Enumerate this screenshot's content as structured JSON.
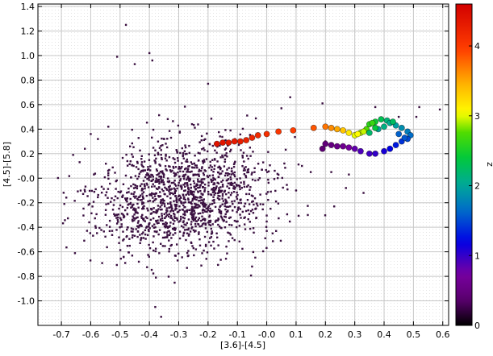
{
  "chart_data": {
    "type": "scatter",
    "xlabel": "[3.6]-[4.5]",
    "ylabel": "[4.5]-[5.8]",
    "xlim": [
      -0.78,
      0.62
    ],
    "ylim": [
      -1.2,
      1.42
    ],
    "xticks": [
      -0.7,
      -0.6,
      -0.5,
      -0.4,
      -0.3,
      -0.2,
      -0.1,
      0.0,
      0.1,
      0.2,
      0.3,
      0.4,
      0.5,
      0.6
    ],
    "xtick_labels": [
      "-0.7",
      "-0.6",
      "-0.5",
      "-0.4",
      "-0.3",
      "-0.2",
      "-0.1",
      "-0.0",
      "0.1",
      "0.2",
      "0.3",
      "0.4",
      "0.5",
      "0.6"
    ],
    "yticks": [
      -1.0,
      -0.8,
      -0.6,
      -0.4,
      -0.2,
      0.0,
      0.2,
      0.4,
      0.6,
      0.8,
      1.0,
      1.2,
      1.4
    ],
    "ytick_labels": [
      "-1.0",
      "-0.8",
      "-0.6",
      "-0.4",
      "-0.2",
      "-0.0",
      "0.2",
      "0.4",
      "0.6",
      "0.8",
      "1.0",
      "1.2",
      "1.4"
    ],
    "grid": true,
    "background_cloud": {
      "marker": "small square",
      "color": "#3a1040",
      "approx_count": 1500,
      "center": [
        -0.28,
        -0.15
      ],
      "spread": [
        0.16,
        0.24
      ],
      "outliers": [
        [
          -0.48,
          1.25
        ],
        [
          -0.4,
          1.02
        ],
        [
          -0.39,
          0.96
        ],
        [
          -0.51,
          0.99
        ],
        [
          -0.45,
          0.93
        ],
        [
          -0.69,
          -0.21
        ],
        [
          -0.66,
          0.19
        ],
        [
          -0.62,
          0.24
        ],
        [
          -0.6,
          0.36
        ],
        [
          -0.54,
          0.42
        ],
        [
          -0.36,
          -1.13
        ],
        [
          -0.38,
          -1.05
        ],
        [
          -0.2,
          0.77
        ],
        [
          0.08,
          0.66
        ],
        [
          0.05,
          0.57
        ],
        [
          0.52,
          0.58
        ],
        [
          0.51,
          0.5
        ],
        [
          0.59,
          0.56
        ],
        [
          0.37,
          0.58
        ],
        [
          0.19,
          0.61
        ],
        [
          0.45,
          0.5
        ],
        [
          0.23,
          -0.23
        ],
        [
          0.14,
          -0.3
        ],
        [
          0.28,
          0.03
        ],
        [
          0.33,
          -0.12
        ],
        [
          0.12,
          0.1
        ],
        [
          0.2,
          0.3
        ],
        [
          0.1,
          -0.1
        ],
        [
          0.06,
          0.12
        ],
        [
          0.0,
          -0.43
        ],
        [
          -0.05,
          -0.72
        ],
        [
          0.02,
          -0.45
        ],
        [
          0.15,
          0.05
        ],
        [
          0.22,
          0.05
        ],
        [
          0.27,
          -0.08
        ]
      ]
    },
    "track": {
      "name": "z",
      "marker": "circle",
      "colormap": "rainbow",
      "points": [
        {
          "x": -0.17,
          "y": 0.28,
          "z": 4.4
        },
        {
          "x": -0.15,
          "y": 0.29,
          "z": 4.38
        },
        {
          "x": -0.13,
          "y": 0.29,
          "z": 4.35
        },
        {
          "x": -0.11,
          "y": 0.3,
          "z": 4.32
        },
        {
          "x": -0.09,
          "y": 0.3,
          "z": 4.28
        },
        {
          "x": -0.07,
          "y": 0.31,
          "z": 4.24
        },
        {
          "x": -0.05,
          "y": 0.33,
          "z": 4.2
        },
        {
          "x": -0.03,
          "y": 0.35,
          "z": 4.15
        },
        {
          "x": 0.0,
          "y": 0.36,
          "z": 4.1
        },
        {
          "x": 0.04,
          "y": 0.38,
          "z": 4.02
        },
        {
          "x": 0.09,
          "y": 0.39,
          "z": 3.95
        },
        {
          "x": 0.16,
          "y": 0.41,
          "z": 3.85
        },
        {
          "x": 0.2,
          "y": 0.42,
          "z": 3.72
        },
        {
          "x": 0.22,
          "y": 0.41,
          "z": 3.62
        },
        {
          "x": 0.24,
          "y": 0.4,
          "z": 3.5
        },
        {
          "x": 0.26,
          "y": 0.39,
          "z": 3.35
        },
        {
          "x": 0.28,
          "y": 0.37,
          "z": 3.15
        },
        {
          "x": 0.3,
          "y": 0.35,
          "z": 3.0
        },
        {
          "x": 0.32,
          "y": 0.37,
          "z": 2.9
        },
        {
          "x": 0.34,
          "y": 0.4,
          "z": 2.75
        },
        {
          "x": 0.35,
          "y": 0.44,
          "z": 2.6
        },
        {
          "x": 0.37,
          "y": 0.46,
          "z": 2.45
        },
        {
          "x": 0.39,
          "y": 0.48,
          "z": 2.3
        },
        {
          "x": 0.41,
          "y": 0.47,
          "z": 2.15
        },
        {
          "x": 0.42,
          "y": 0.45,
          "z": 2.05
        },
        {
          "x": 0.44,
          "y": 0.43,
          "z": 1.95
        },
        {
          "x": 0.46,
          "y": 0.41,
          "z": 1.85
        },
        {
          "x": 0.48,
          "y": 0.38,
          "z": 1.75
        },
        {
          "x": 0.49,
          "y": 0.35,
          "z": 1.65
        },
        {
          "x": 0.48,
          "y": 0.32,
          "z": 1.5
        },
        {
          "x": 0.46,
          "y": 0.3,
          "z": 1.4
        },
        {
          "x": 0.44,
          "y": 0.27,
          "z": 1.3
        },
        {
          "x": 0.42,
          "y": 0.24,
          "z": 1.2
        },
        {
          "x": 0.4,
          "y": 0.22,
          "z": 1.1
        },
        {
          "x": 0.37,
          "y": 0.2,
          "z": 1.0
        },
        {
          "x": 0.35,
          "y": 0.2,
          "z": 0.95
        },
        {
          "x": 0.32,
          "y": 0.22,
          "z": 0.9
        },
        {
          "x": 0.3,
          "y": 0.24,
          "z": 0.82
        },
        {
          "x": 0.28,
          "y": 0.25,
          "z": 0.72
        },
        {
          "x": 0.26,
          "y": 0.26,
          "z": 0.62
        },
        {
          "x": 0.24,
          "y": 0.26,
          "z": 0.55
        },
        {
          "x": 0.22,
          "y": 0.27,
          "z": 0.5
        },
        {
          "x": 0.2,
          "y": 0.28,
          "z": 0.45
        },
        {
          "x": 0.19,
          "y": 0.24,
          "z": 0.42
        },
        {
          "x": 0.35,
          "y": 0.37,
          "z": 2.2
        },
        {
          "x": 0.38,
          "y": 0.4,
          "z": 2.0
        },
        {
          "x": 0.4,
          "y": 0.42,
          "z": 2.1
        },
        {
          "x": 0.37,
          "y": 0.41,
          "z": 2.4
        },
        {
          "x": 0.43,
          "y": 0.46,
          "z": 2.25
        },
        {
          "x": 0.45,
          "y": 0.36,
          "z": 1.6
        },
        {
          "x": 0.47,
          "y": 0.33,
          "z": 1.55
        },
        {
          "x": 0.36,
          "y": 0.45,
          "z": 2.65
        },
        {
          "x": 0.33,
          "y": 0.38,
          "z": 2.95
        },
        {
          "x": 0.31,
          "y": 0.36,
          "z": 3.05
        }
      ]
    },
    "colorbar": {
      "label": "z",
      "range": [
        0.0,
        4.6
      ],
      "ticks": [
        0,
        1,
        2,
        3,
        4
      ],
      "tick_labels": [
        "0",
        "1",
        "2",
        "3",
        "4"
      ]
    }
  }
}
